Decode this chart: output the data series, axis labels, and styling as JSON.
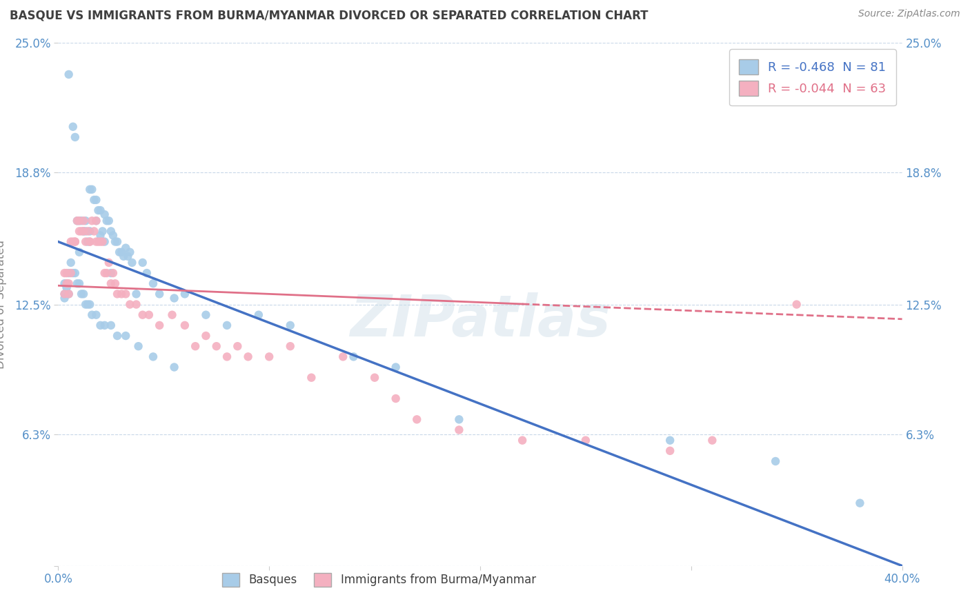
{
  "title": "BASQUE VS IMMIGRANTS FROM BURMA/MYANMAR DIVORCED OR SEPARATED CORRELATION CHART",
  "source": "Source: ZipAtlas.com",
  "ylabel": "Divorced or Separated",
  "xlim": [
    0.0,
    0.4
  ],
  "ylim": [
    0.0,
    0.25
  ],
  "yticks": [
    0.0,
    0.063,
    0.125,
    0.188,
    0.25
  ],
  "ytick_labels": [
    "",
    "6.3%",
    "12.5%",
    "18.8%",
    "25.0%"
  ],
  "xticks": [
    0.0,
    0.1,
    0.2,
    0.3,
    0.4
  ],
  "xtick_labels": [
    "0.0%",
    "",
    "",
    "",
    "40.0%"
  ],
  "blue_R": -0.468,
  "blue_N": 81,
  "pink_R": -0.044,
  "pink_N": 63,
  "blue_color": "#a8cce8",
  "pink_color": "#f4b0c0",
  "blue_line_color": "#4472c4",
  "pink_line_color": "#e07088",
  "legend_label_1": "Basques",
  "legend_label_2": "Immigrants from Burma/Myanmar",
  "watermark": "ZIPatlas",
  "background_color": "#ffffff",
  "grid_color": "#c8d8e8",
  "title_color": "#404040",
  "axis_tick_color": "#5590c8",
  "blue_line_start_y": 0.155,
  "blue_line_end_y": 0.0,
  "pink_line_start_y": 0.134,
  "pink_line_end_y": 0.118,
  "blue_x": [
    0.005,
    0.005,
    0.007,
    0.008,
    0.009,
    0.01,
    0.01,
    0.011,
    0.012,
    0.013,
    0.013,
    0.014,
    0.015,
    0.015,
    0.016,
    0.017,
    0.018,
    0.018,
    0.019,
    0.02,
    0.02,
    0.021,
    0.022,
    0.022,
    0.023,
    0.024,
    0.025,
    0.025,
    0.026,
    0.027,
    0.028,
    0.029,
    0.03,
    0.031,
    0.032,
    0.033,
    0.034,
    0.035,
    0.037,
    0.04,
    0.042,
    0.045,
    0.048,
    0.055,
    0.06,
    0.07,
    0.08,
    0.095,
    0.11,
    0.14,
    0.16,
    0.19,
    0.29,
    0.34,
    0.38,
    0.003,
    0.003,
    0.003,
    0.004,
    0.004,
    0.005,
    0.006,
    0.007,
    0.008,
    0.009,
    0.01,
    0.011,
    0.012,
    0.013,
    0.014,
    0.015,
    0.016,
    0.018,
    0.02,
    0.022,
    0.025,
    0.028,
    0.032,
    0.038,
    0.045,
    0.055
  ],
  "blue_y": [
    0.235,
    0.13,
    0.21,
    0.205,
    0.165,
    0.165,
    0.15,
    0.165,
    0.16,
    0.165,
    0.16,
    0.155,
    0.18,
    0.16,
    0.18,
    0.175,
    0.175,
    0.165,
    0.17,
    0.17,
    0.158,
    0.16,
    0.168,
    0.155,
    0.165,
    0.165,
    0.16,
    0.14,
    0.158,
    0.155,
    0.155,
    0.15,
    0.15,
    0.148,
    0.152,
    0.148,
    0.15,
    0.145,
    0.13,
    0.145,
    0.14,
    0.135,
    0.13,
    0.128,
    0.13,
    0.12,
    0.115,
    0.12,
    0.115,
    0.1,
    0.095,
    0.07,
    0.06,
    0.05,
    0.03,
    0.135,
    0.13,
    0.128,
    0.133,
    0.135,
    0.14,
    0.145,
    0.14,
    0.14,
    0.135,
    0.135,
    0.13,
    0.13,
    0.125,
    0.125,
    0.125,
    0.12,
    0.12,
    0.115,
    0.115,
    0.115,
    0.11,
    0.11,
    0.105,
    0.1,
    0.095
  ],
  "pink_x": [
    0.003,
    0.003,
    0.004,
    0.005,
    0.005,
    0.006,
    0.007,
    0.008,
    0.009,
    0.01,
    0.011,
    0.012,
    0.013,
    0.014,
    0.015,
    0.016,
    0.017,
    0.018,
    0.019,
    0.02,
    0.021,
    0.022,
    0.023,
    0.024,
    0.025,
    0.026,
    0.027,
    0.028,
    0.03,
    0.032,
    0.034,
    0.037,
    0.04,
    0.043,
    0.048,
    0.054,
    0.06,
    0.065,
    0.07,
    0.075,
    0.08,
    0.085,
    0.09,
    0.1,
    0.11,
    0.12,
    0.135,
    0.15,
    0.16,
    0.17,
    0.19,
    0.22,
    0.25,
    0.29,
    0.31,
    0.35,
    0.004,
    0.006,
    0.008,
    0.01,
    0.012,
    0.015,
    0.018
  ],
  "pink_y": [
    0.14,
    0.13,
    0.135,
    0.135,
    0.13,
    0.14,
    0.155,
    0.155,
    0.165,
    0.165,
    0.16,
    0.16,
    0.155,
    0.16,
    0.155,
    0.165,
    0.16,
    0.165,
    0.155,
    0.155,
    0.155,
    0.14,
    0.14,
    0.145,
    0.135,
    0.14,
    0.135,
    0.13,
    0.13,
    0.13,
    0.125,
    0.125,
    0.12,
    0.12,
    0.115,
    0.12,
    0.115,
    0.105,
    0.11,
    0.105,
    0.1,
    0.105,
    0.1,
    0.1,
    0.105,
    0.09,
    0.1,
    0.09,
    0.08,
    0.07,
    0.065,
    0.06,
    0.06,
    0.055,
    0.06,
    0.125,
    0.14,
    0.155,
    0.155,
    0.16,
    0.165,
    0.155,
    0.155
  ]
}
